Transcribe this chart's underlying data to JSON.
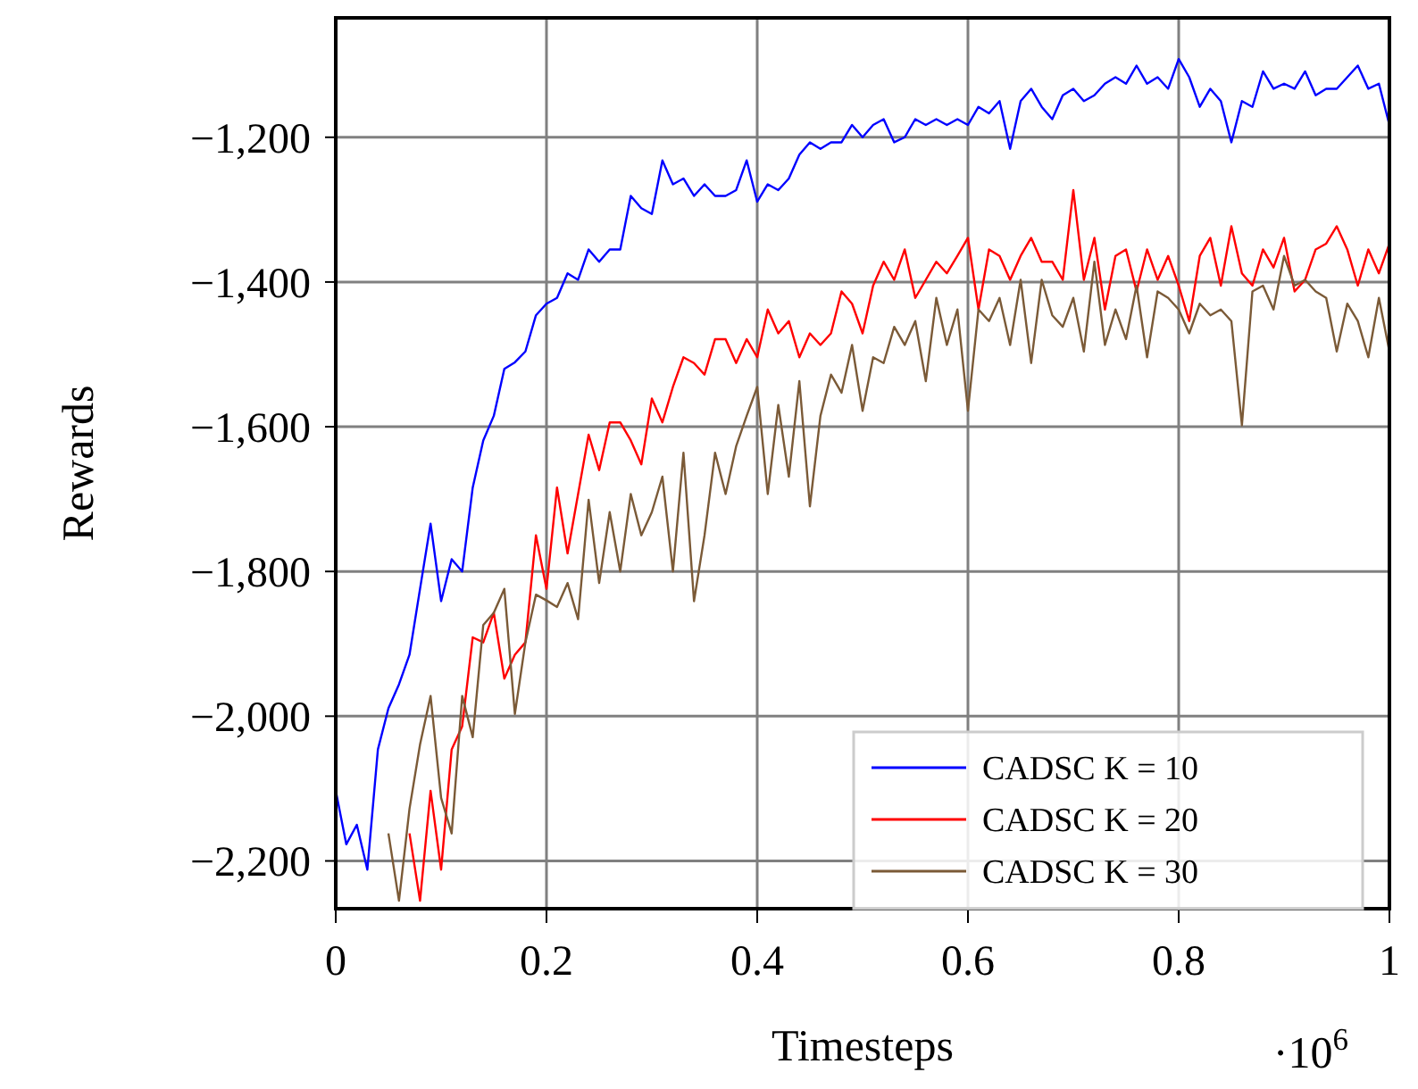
{
  "chart_data": {
    "type": "line",
    "xlabel": "Timesteps",
    "ylabel": "Rewards",
    "annotations": [
      "·10$^{6}$"
    ],
    "x": [
      0,
      0.01,
      0.02,
      0.03,
      0.04,
      0.05,
      0.06,
      0.07,
      0.08,
      0.09,
      0.1,
      0.11,
      0.12,
      0.13,
      0.14,
      0.15,
      0.16,
      0.17,
      0.18,
      0.19,
      0.2,
      0.21,
      0.22,
      0.23,
      0.24,
      0.25,
      0.26,
      0.27,
      0.28,
      0.29,
      0.3,
      0.31,
      0.32,
      0.33,
      0.34,
      0.35,
      0.36,
      0.37,
      0.38,
      0.39,
      0.4,
      0.41,
      0.42,
      0.43,
      0.44,
      0.45,
      0.46,
      0.47,
      0.48,
      0.49,
      0.5,
      0.51,
      0.52,
      0.53,
      0.54,
      0.55,
      0.56,
      0.57,
      0.58,
      0.59,
      0.6,
      0.61,
      0.62,
      0.63,
      0.64,
      0.65,
      0.66,
      0.67,
      0.68,
      0.69,
      0.7,
      0.71,
      0.72,
      0.73,
      0.74,
      0.75,
      0.76,
      0.77,
      0.78,
      0.79,
      0.8,
      0.81,
      0.82,
      0.83,
      0.84,
      0.85,
      0.86,
      0.87,
      0.88,
      0.89,
      0.9,
      0.91,
      0.92,
      0.93,
      0.94,
      0.95,
      0.96,
      0.97,
      0.98,
      0.99,
      1
    ],
    "series": [
      {
        "name": "CADSC K = 10",
        "color": "#0000ff",
        "values": [
          -2103,
          -2177,
          -2150,
          -2212,
          -2046,
          -1989,
          -1956,
          -1915,
          -1824,
          -1734,
          -1841,
          -1783,
          -1800,
          -1684,
          -1619,
          -1585,
          -1520,
          -1511,
          -1496,
          -1446,
          -1430,
          -1422,
          -1388,
          -1397,
          -1355,
          -1372,
          -1355,
          -1355,
          -1281,
          -1298,
          -1306,
          -1232,
          -1265,
          -1257,
          -1281,
          -1265,
          -1281,
          -1281,
          -1273,
          -1232,
          -1289,
          -1265,
          -1273,
          -1257,
          -1224,
          -1207,
          -1216,
          -1207,
          -1207,
          -1183,
          -1200,
          -1183,
          -1175,
          -1207,
          -1200,
          -1175,
          -1183,
          -1175,
          -1183,
          -1175,
          -1183,
          -1158,
          -1167,
          -1150,
          -1216,
          -1150,
          -1133,
          -1158,
          -1175,
          -1142,
          -1133,
          -1150,
          -1142,
          -1126,
          -1117,
          -1126,
          -1101,
          -1126,
          -1117,
          -1133,
          -1092,
          -1117,
          -1158,
          -1133,
          -1150,
          -1207,
          -1150,
          -1158,
          -1109,
          -1133,
          -1126,
          -1133,
          -1109,
          -1142,
          -1133,
          -1133,
          -1117,
          -1101,
          -1133,
          -1126,
          -1183
        ]
      },
      {
        "name": "CADSC K = 20",
        "color": "#ff0000",
        "values": [
          null,
          null,
          null,
          null,
          null,
          null,
          null,
          -2162,
          -2255,
          -2103,
          -2212,
          -2046,
          -2014,
          -1891,
          -1898,
          -1857,
          -1948,
          -1915,
          -1898,
          -1750,
          -1824,
          -1684,
          -1775,
          -1693,
          -1611,
          -1660,
          -1594,
          -1594,
          -1619,
          -1652,
          -1561,
          -1594,
          -1545,
          -1504,
          -1512,
          -1528,
          -1479,
          -1479,
          -1512,
          -1479,
          -1504,
          -1438,
          -1471,
          -1454,
          -1504,
          -1471,
          -1487,
          -1471,
          -1413,
          -1430,
          -1471,
          -1405,
          -1372,
          -1397,
          -1355,
          -1422,
          -1397,
          -1372,
          -1388,
          -1364,
          -1339,
          -1438,
          -1355,
          -1364,
          -1397,
          -1364,
          -1339,
          -1372,
          -1372,
          -1397,
          -1273,
          -1397,
          -1339,
          -1438,
          -1364,
          -1355,
          -1413,
          -1355,
          -1397,
          -1364,
          -1405,
          -1454,
          -1364,
          -1339,
          -1405,
          -1323,
          -1388,
          -1405,
          -1355,
          -1380,
          -1339,
          -1413,
          -1397,
          -1355,
          -1347,
          -1323,
          -1355,
          -1405,
          -1355,
          -1388,
          -1347
        ]
      },
      {
        "name": "CADSC K = 30",
        "color": "#7b5a37",
        "values": [
          null,
          null,
          null,
          null,
          null,
          -2162,
          -2255,
          -2128,
          -2039,
          -1972,
          -2113,
          -2162,
          -1972,
          -2029,
          -1874,
          -1857,
          -1824,
          -1997,
          -1898,
          -1832,
          -1840,
          -1849,
          -1816,
          -1866,
          -1701,
          -1816,
          -1718,
          -1800,
          -1693,
          -1750,
          -1718,
          -1669,
          -1800,
          -1636,
          -1841,
          -1750,
          -1636,
          -1693,
          -1627,
          -1585,
          -1545,
          -1693,
          -1570,
          -1669,
          -1537,
          -1710,
          -1585,
          -1528,
          -1553,
          -1487,
          -1578,
          -1504,
          -1512,
          -1462,
          -1487,
          -1454,
          -1537,
          -1422,
          -1487,
          -1438,
          -1578,
          -1438,
          -1454,
          -1422,
          -1487,
          -1397,
          -1512,
          -1397,
          -1446,
          -1462,
          -1422,
          -1496,
          -1372,
          -1487,
          -1438,
          -1479,
          -1405,
          -1504,
          -1413,
          -1422,
          -1438,
          -1471,
          -1430,
          -1446,
          -1438,
          -1454,
          -1598,
          -1413,
          -1405,
          -1438,
          -1364,
          -1405,
          -1397,
          -1413,
          -1422,
          -1496,
          -1430,
          -1454,
          -1504,
          -1422,
          -1496
        ]
      }
    ],
    "xlim": [
      0,
      1
    ],
    "ylim": [
      -2266,
      -1035
    ],
    "xticks": [
      0,
      0.2,
      0.4,
      0.6,
      0.8,
      1
    ],
    "yticks": [
      {
        "value": -2200,
        "label": "−2,200"
      },
      {
        "value": -2000,
        "label": "−2,000"
      },
      {
        "value": -1800,
        "label": "−1,800"
      },
      {
        "value": -1600,
        "label": "−1,600"
      },
      {
        "value": -1400,
        "label": "−1,400"
      },
      {
        "value": -1200,
        "label": "−1,200"
      }
    ],
    "grid": true,
    "legend": "bottom right",
    "line_style": "solid"
  }
}
